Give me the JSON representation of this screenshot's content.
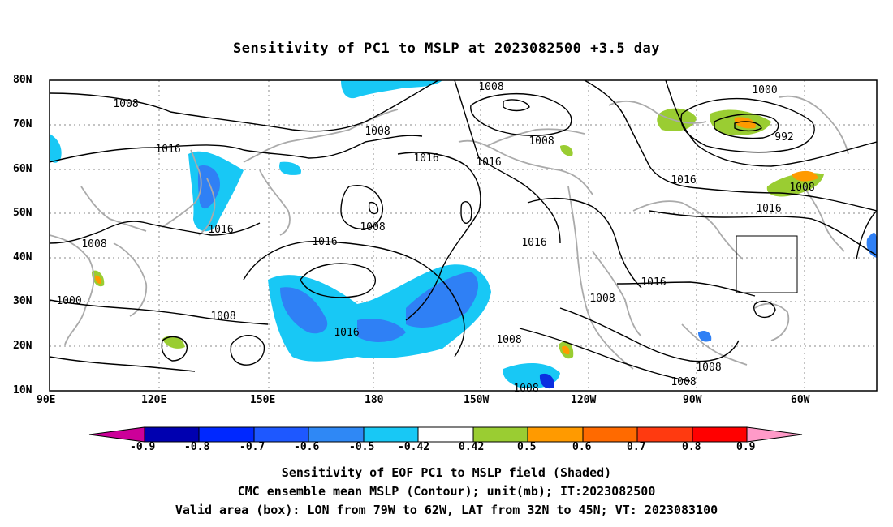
{
  "title": "Sensitivity of PC1 to MSLP at 2023082500 +3.5 day",
  "map": {
    "lat_labels": [
      "80N",
      "70N",
      "60N",
      "50N",
      "40N",
      "30N",
      "20N",
      "10N"
    ],
    "lon_labels": [
      "90E",
      "120E",
      "150E",
      "180",
      "150W",
      "120W",
      "90W",
      "60W"
    ],
    "contour_labels": [
      "1008",
      "1008",
      "1008",
      "1016",
      "1008",
      "1016",
      "1016",
      "1000",
      "992",
      "1008",
      "1016",
      "1016",
      "1016",
      "1008",
      "1016",
      "1008",
      "1016",
      "1008",
      "1016",
      "1008",
      "1000",
      "1016",
      "1008",
      "1008",
      "1008",
      "1008"
    ],
    "colors": {
      "land": "#aaaaaa",
      "contour": "#000000",
      "grid": "#888888",
      "shade_blue_dark": "#0a2ee0",
      "shade_blue": "#2f80f5",
      "shade_cyan": "#18c8f5",
      "shade_green": "#9acd32",
      "shade_orange": "#ff9a00",
      "shade_red": "#ff4010"
    }
  },
  "colorbar": {
    "labels": [
      "-0.9",
      "-0.8",
      "-0.7",
      "-0.6",
      "-0.5",
      "-0.42",
      "0.42",
      "0.5",
      "0.6",
      "0.7",
      "0.8",
      "0.9"
    ],
    "colors": [
      "#cc0099",
      "#0000b0",
      "#0028ff",
      "#1e58ff",
      "#2f88f5",
      "#18c8f5",
      "#ffffff",
      "#9acd32",
      "#ff9a00",
      "#ff6a00",
      "#ff3a10",
      "#ff0000",
      "#ff9ac8"
    ]
  },
  "captions": [
    "Sensitivity of EOF PC1 to MSLP field (Shaded)",
    "CMC ensemble mean MSLP (Contour); unit(mb); IT:2023082500",
    "Valid area (box): LON from 79W to 62W, LAT from 32N to 45N; VT: 2023083100"
  ]
}
